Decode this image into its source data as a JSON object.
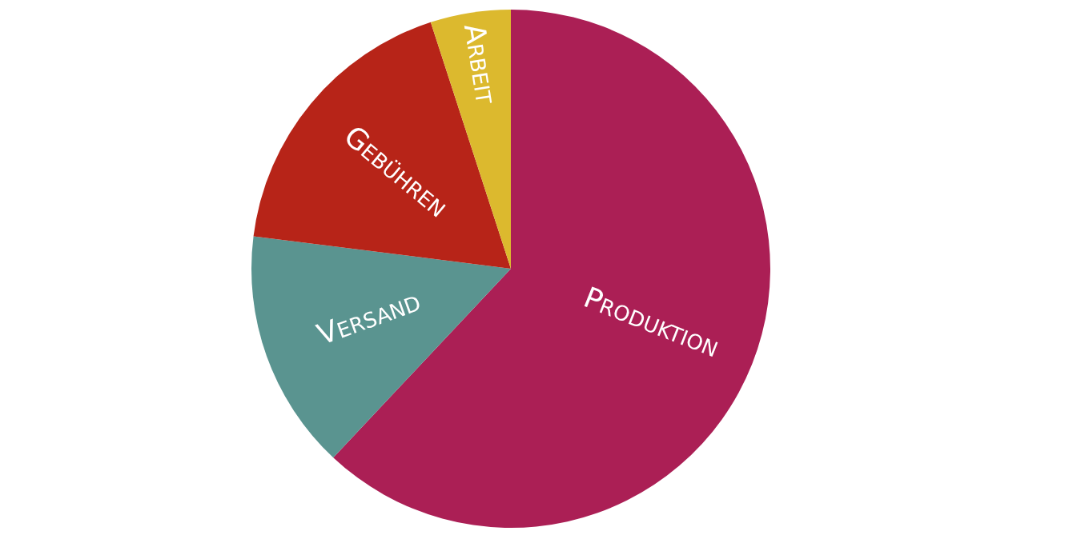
{
  "chart_data": {
    "type": "pie",
    "categories": [
      "Produktion",
      "Versand",
      "Gebühren",
      "Arbeit"
    ],
    "values": [
      62,
      15,
      18,
      5
    ],
    "colors": [
      "#ab1f55",
      "#5a9490",
      "#b72418",
      "#dcb92e"
    ]
  }
}
